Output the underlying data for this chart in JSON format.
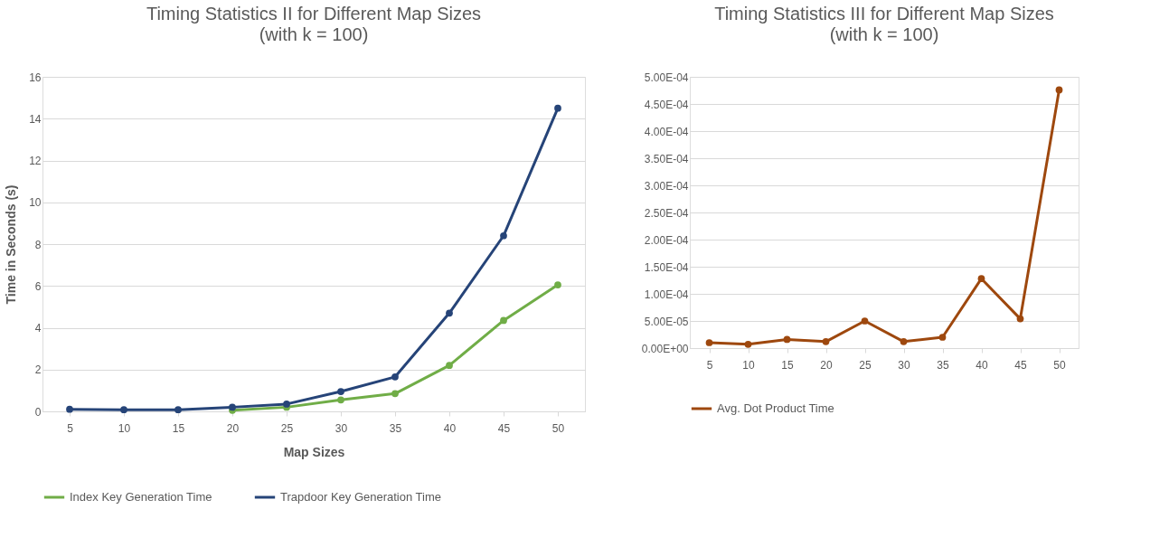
{
  "chart_data": [
    {
      "type": "line",
      "title": "Timing Statistics II for Different Map Sizes",
      "subtitle": "(with k = 100)",
      "xlabel": "Map Sizes",
      "ylabel": "Time in Seconds (s)",
      "categories": [
        "5",
        "10",
        "15",
        "20",
        "25",
        "30",
        "35",
        "40",
        "45",
        "50"
      ],
      "series": [
        {
          "name": "Index Key Generation Time",
          "color": "#70ad47",
          "values": [
            null,
            null,
            null,
            0.05,
            0.2,
            0.55,
            0.85,
            2.2,
            4.35,
            6.05
          ]
        },
        {
          "name": "Trapdoor Key Generation Time",
          "color": "#264478",
          "values": [
            0.1,
            0.08,
            0.08,
            0.2,
            0.35,
            0.95,
            1.65,
            4.7,
            8.4,
            14.5
          ]
        }
      ],
      "ylim": [
        0,
        16
      ],
      "yticks": [
        0,
        2,
        4,
        6,
        8,
        10,
        12,
        14,
        16
      ],
      "grid": "y",
      "legend": "bottom",
      "marker": "circle",
      "line_style": "solid"
    },
    {
      "type": "line",
      "title": "Timing Statistics III for Different Map Sizes",
      "subtitle": "(with k = 100)",
      "categories": [
        "5",
        "10",
        "15",
        "20",
        "25",
        "30",
        "35",
        "40",
        "45",
        "50"
      ],
      "series": [
        {
          "name": "Avg. Dot Product Time",
          "color": "#9e480e",
          "values": [
            1e-05,
            7e-06,
            1.6e-05,
            1.2e-05,
            5e-05,
            1.2e-05,
            2e-05,
            0.000128,
            5.4e-05,
            0.000476
          ]
        }
      ],
      "ylim": [
        0,
        0.0005
      ],
      "yticks": [
        {
          "value": 0,
          "label": "0.00E+00"
        },
        {
          "value": 5e-05,
          "label": "5.00E-05"
        },
        {
          "value": 0.0001,
          "label": "1.00E-04"
        },
        {
          "value": 0.00015,
          "label": "1.50E-04"
        },
        {
          "value": 0.0002,
          "label": "2.00E-04"
        },
        {
          "value": 0.00025,
          "label": "2.50E-04"
        },
        {
          "value": 0.0003,
          "label": "3.00E-04"
        },
        {
          "value": 0.00035,
          "label": "3.50E-04"
        },
        {
          "value": 0.0004,
          "label": "4.00E-04"
        },
        {
          "value": 0.00045,
          "label": "4.50E-04"
        },
        {
          "value": 0.0005,
          "label": "5.00E-04"
        }
      ],
      "grid": "y",
      "legend": "bottom",
      "marker": "circle",
      "line_style": "solid"
    }
  ]
}
